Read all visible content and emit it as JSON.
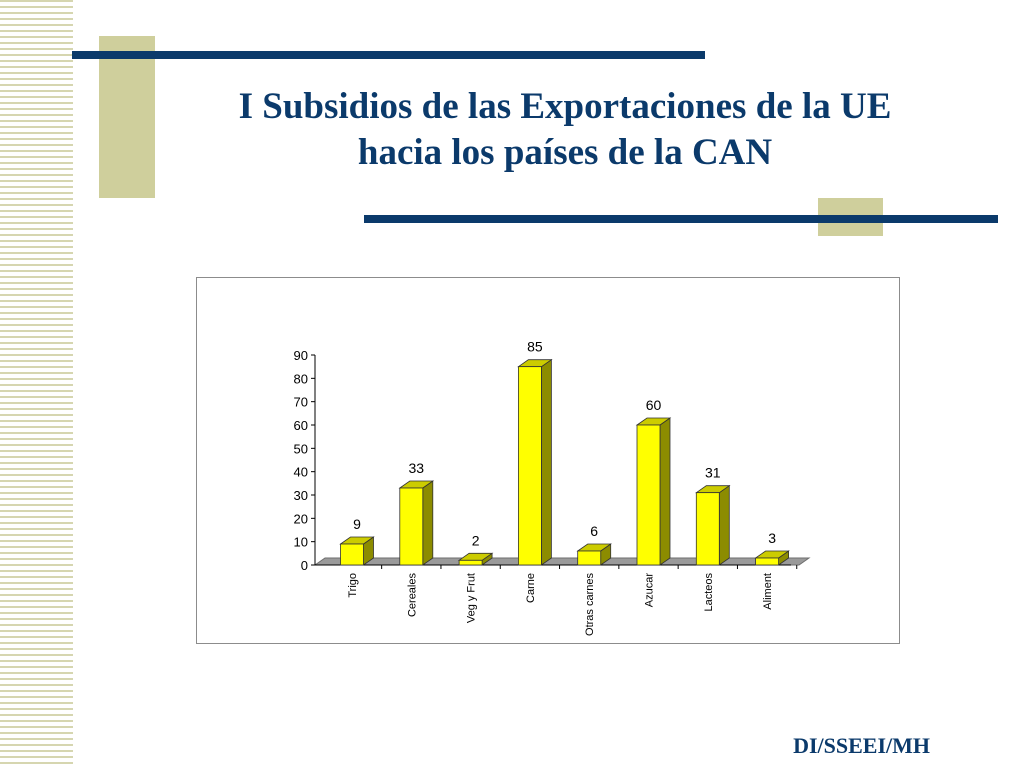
{
  "slide": {
    "title_line1": "I Subsidios de las Exportaciones de la UE",
    "title_line2": "hacia los países de la CAN",
    "footer": "DI/SSEEI/MH",
    "colors": {
      "title": "#0b3a6b",
      "accent_line": "#0b3a6b",
      "accent_block": "#cfcf9c",
      "bar_fill": "#ffff00"
    }
  },
  "chart_data": {
    "type": "bar",
    "title": "",
    "xlabel": "",
    "ylabel": "",
    "categories": [
      "Trigo",
      "Cereales",
      "Veg y Frut",
      "Carne",
      "Otras carnes",
      "Azucar",
      "Lacteos",
      "Aliment"
    ],
    "values": [
      9,
      33,
      2,
      85,
      6,
      60,
      31,
      3
    ],
    "ylim": [
      0,
      90
    ],
    "yticks": [
      0,
      10,
      20,
      30,
      40,
      50,
      60,
      70,
      80,
      90
    ],
    "data_labels": true,
    "style": "3d",
    "legend": "none",
    "grid": false
  }
}
